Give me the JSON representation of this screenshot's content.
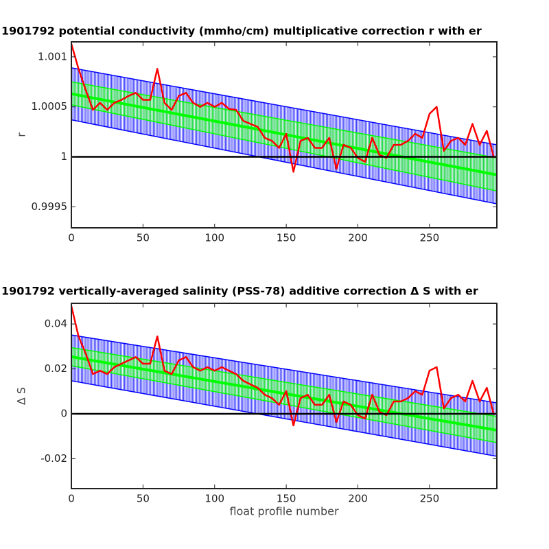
{
  "chart_data": [
    {
      "type": "line",
      "title": "1901792 potential conductivity (mmho/cm) multiplicative correction r with er",
      "ylabel": "r",
      "xlim": [
        0,
        297
      ],
      "ylim": [
        0.99929,
        1.00115
      ],
      "xticks": [
        0,
        50,
        100,
        150,
        200,
        250
      ],
      "yticks": [
        0.9995,
        1,
        1.0005,
        1.001
      ],
      "reference_line": 1,
      "series": [
        {
          "color": "#0000ff",
          "x": [
            0,
            297
          ],
          "upper": [
            1.00089,
            1.00012
          ],
          "lower": [
            1.00037,
            0.99953
          ]
        },
        {
          "color": "#00ff00",
          "x": [
            0,
            297
          ],
          "upper": [
            1.00075,
            0.99999
          ],
          "lower": [
            1.00052,
            0.99966
          ]
        },
        {
          "color": "#00ff00",
          "x": [
            0,
            297
          ],
          "values": [
            1.00063,
            0.99982
          ]
        },
        {
          "color": "#ff0000",
          "x": [
            0,
            5,
            10,
            15,
            20,
            25,
            30,
            35,
            40,
            45,
            50,
            55,
            60,
            65,
            70,
            75,
            80,
            85,
            90,
            95,
            100,
            105,
            110,
            115,
            120,
            125,
            130,
            135,
            140,
            145,
            150,
            155,
            160,
            165,
            170,
            175,
            180,
            185,
            190,
            195,
            200,
            205,
            210,
            215,
            220,
            225,
            230,
            235,
            240,
            245,
            250,
            255,
            260,
            265,
            270,
            275,
            280,
            285,
            290,
            295
          ],
          "values": [
            1.00113,
            1.00088,
            1.00067,
            1.00047,
            1.00054,
            1.00047,
            1.00054,
            1.00057,
            1.00061,
            1.00064,
            1.00057,
            1.00057,
            1.00088,
            1.00054,
            1.00047,
            1.00061,
            1.00064,
            1.00054,
            1.0005,
            1.00054,
            1.0005,
            1.00054,
            1.00048,
            1.00047,
            1.00036,
            1.00033,
            1.0003,
            1.00019,
            1.00016,
            1.00009,
            1.00023,
            0.99985,
            1.00016,
            1.00019,
            1.00009,
            1.00009,
            1.00019,
            0.99988,
            1.00012,
            1.00009,
            0.99999,
            0.99995,
            1.00019,
            1.00002,
            0.99999,
            1.00012,
            1.00012,
            1.00016,
            1.00023,
            1.00019,
            1.00043,
            1.0005,
            1.00006,
            1.00016,
            1.00019,
            1.00012,
            1.00033,
            1.00012,
            1.00026,
            0.99999
          ]
        }
      ]
    },
    {
      "type": "line",
      "title": "1901792 vertically-averaged salinity (PSS-78) additive correction Δ S with er",
      "ylabel": "Δ S",
      "xlabel": "float profile number",
      "xlim": [
        0,
        297
      ],
      "ylim": [
        -0.0333,
        0.0492
      ],
      "xticks": [
        0,
        50,
        100,
        150,
        200,
        250
      ],
      "yticks": [
        -0.02,
        0,
        0.02,
        0.04
      ],
      "reference_line": 0,
      "series": [
        {
          "color": "#0000ff",
          "x": [
            0,
            297
          ],
          "upper": [
            0.0351,
            0.0049
          ],
          "lower": [
            0.0147,
            -0.0189
          ]
        },
        {
          "color": "#00ff00",
          "x": [
            0,
            297
          ],
          "upper": [
            0.0295,
            -0.0012
          ],
          "lower": [
            0.0214,
            -0.0128
          ]
        },
        {
          "color": "#00ff00",
          "x": [
            0,
            297
          ],
          "values": [
            0.0254,
            -0.0073
          ]
        },
        {
          "color": "#ff0000",
          "x": [
            0,
            5,
            10,
            15,
            20,
            25,
            30,
            35,
            40,
            45,
            50,
            55,
            60,
            65,
            70,
            75,
            80,
            85,
            90,
            95,
            100,
            105,
            110,
            115,
            120,
            125,
            130,
            135,
            140,
            145,
            150,
            155,
            160,
            165,
            170,
            175,
            180,
            185,
            190,
            195,
            200,
            205,
            210,
            215,
            220,
            225,
            230,
            235,
            240,
            245,
            250,
            255,
            260,
            265,
            270,
            275,
            280,
            285,
            290,
            295
          ],
          "values": [
            0.048,
            0.0345,
            0.0269,
            0.0177,
            0.0192,
            0.0177,
            0.0208,
            0.0223,
            0.0238,
            0.0253,
            0.0223,
            0.0223,
            0.0345,
            0.0192,
            0.0177,
            0.0238,
            0.0253,
            0.0208,
            0.0192,
            0.0208,
            0.0192,
            0.0208,
            0.0192,
            0.0177,
            0.0147,
            0.0131,
            0.0116,
            0.0085,
            0.007,
            0.004,
            0.0101,
            -0.0052,
            0.007,
            0.0085,
            0.004,
            0.004,
            0.0085,
            -0.0037,
            0.0055,
            0.004,
            -0.0006,
            -0.0021,
            0.0085,
            0.0009,
            -0.0006,
            0.0055,
            0.0055,
            0.007,
            0.0101,
            0.0085,
            0.0192,
            0.0208,
            0.0024,
            0.007,
            0.0085,
            0.0055,
            0.0147,
            0.0055,
            0.0116,
            -0.0006
          ]
        }
      ]
    }
  ]
}
